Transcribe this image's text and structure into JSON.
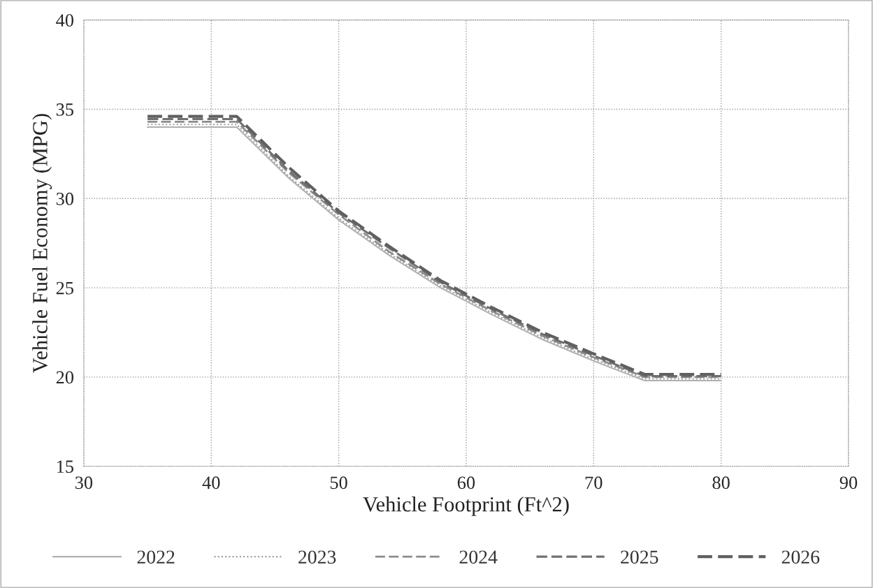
{
  "chart_data": {
    "type": "line",
    "xlabel": "Vehicle Footprint (Ft^2)",
    "ylabel": "Vehicle Fuel Economy (MPG)",
    "x": [
      35,
      42,
      46,
      50,
      54,
      58,
      62,
      66,
      70,
      74,
      80
    ],
    "series": [
      {
        "name": "2022",
        "color": "#b0b0b0",
        "line_style": "solid",
        "values": [
          34.0,
          34.0,
          31.2,
          28.8,
          26.8,
          25.0,
          23.5,
          22.1,
          20.9,
          19.8,
          19.8
        ]
      },
      {
        "name": "2023",
        "color": "#a0a0a0",
        "line_style": "dotted",
        "values": [
          34.15,
          34.15,
          31.3,
          28.9,
          26.9,
          25.1,
          23.6,
          22.2,
          21.0,
          19.9,
          19.9
        ]
      },
      {
        "name": "2024",
        "color": "#8c8c8c",
        "line_style": "dashed",
        "values": [
          34.3,
          34.3,
          31.5,
          29.1,
          27.0,
          25.2,
          23.7,
          22.3,
          21.1,
          20.0,
          20.0
        ]
      },
      {
        "name": "2025",
        "color": "#707070",
        "line_style": "dashed",
        "values": [
          34.45,
          34.45,
          31.6,
          29.2,
          27.2,
          25.3,
          23.8,
          22.4,
          21.2,
          20.05,
          20.05
        ]
      },
      {
        "name": "2026",
        "color": "#606060",
        "line_style": "dashed",
        "values": [
          34.6,
          34.6,
          31.8,
          29.3,
          27.3,
          25.4,
          23.9,
          22.5,
          21.3,
          20.15,
          20.15
        ]
      }
    ],
    "xlim": [
      30,
      90
    ],
    "xticks": [
      30,
      40,
      50,
      60,
      70,
      80,
      90
    ],
    "ylim": [
      15,
      40
    ],
    "yticks": [
      15,
      20,
      25,
      30,
      35,
      40
    ],
    "grid": true,
    "legend": "bottom",
    "marker": "none"
  }
}
